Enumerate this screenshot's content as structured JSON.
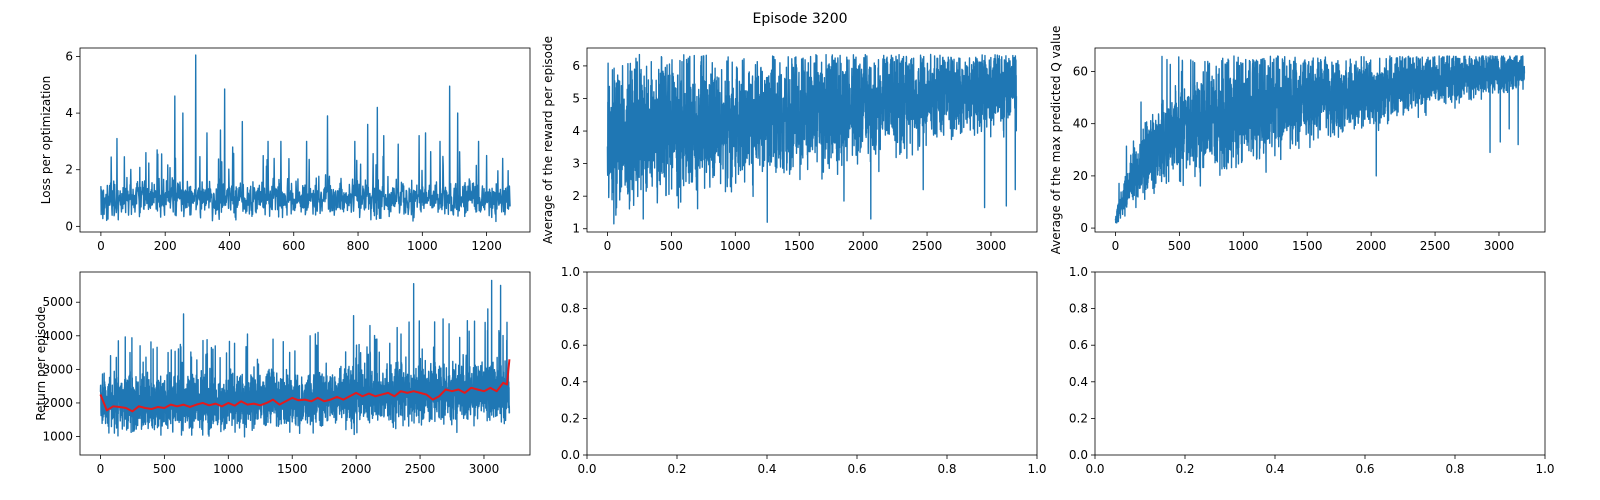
{
  "figure": {
    "suptitle": "Episode 3200"
  },
  "colors": {
    "series_blue": "#1f77b4",
    "moving_average_red": "#e41a1c",
    "axes_edge": "#000000",
    "background": "#ffffff"
  },
  "chart_data": [
    {
      "id": "loss",
      "type": "line",
      "title": "",
      "xlabel": "",
      "ylabel": "Loss per optimization",
      "xlim": [
        -65,
        1335
      ],
      "ylim": [
        -0.2,
        6.3
      ],
      "xticks": [
        0,
        200,
        400,
        600,
        800,
        1000,
        1200
      ],
      "yticks": [
        0,
        2,
        4,
        6
      ],
      "grid": false,
      "legend": "none",
      "series": [
        {
          "color": "#1f77b4",
          "style": "noisy-line",
          "n_points": 1274,
          "x_range": [
            0,
            1273
          ],
          "baseline": [
            [
              0,
              0.9
            ],
            [
              200,
              1.0
            ],
            [
              600,
              1.0
            ],
            [
              1000,
              1.0
            ],
            [
              1273,
              0.9
            ]
          ],
          "band": [
            [
              0,
              0.6
            ],
            [
              1273,
              0.6
            ]
          ],
          "floor": 0.15,
          "spikes": [
            [
              50,
              3.1
            ],
            [
              140,
              2.6
            ],
            [
              175,
              2.7
            ],
            [
              230,
              4.6
            ],
            [
              255,
              4.0
            ],
            [
              295,
              6.05
            ],
            [
              330,
              3.3
            ],
            [
              372,
              3.4
            ],
            [
              385,
              4.85
            ],
            [
              410,
              2.8
            ],
            [
              440,
              3.7
            ],
            [
              520,
              3.0
            ],
            [
              560,
              3.0
            ],
            [
              640,
              3.0
            ],
            [
              705,
              3.9
            ],
            [
              790,
              3.0
            ],
            [
              830,
              3.6
            ],
            [
              860,
              4.2
            ],
            [
              880,
              3.2
            ],
            [
              925,
              2.9
            ],
            [
              990,
              3.2
            ],
            [
              1010,
              3.3
            ],
            [
              1055,
              3.0
            ],
            [
              1085,
              4.95
            ],
            [
              1110,
              4.0
            ],
            [
              1175,
              3.0
            ],
            [
              1200,
              2.5
            ],
            [
              1250,
              2.4
            ]
          ]
        }
      ]
    },
    {
      "id": "avg-reward",
      "type": "line",
      "title": "",
      "xlabel": "",
      "ylabel": "Average of the reward per episode",
      "xlim": [
        -160,
        3360
      ],
      "ylim": [
        0.9,
        6.55
      ],
      "xticks": [
        0,
        500,
        1000,
        1500,
        2000,
        2500,
        3000
      ],
      "yticks": [
        1,
        2,
        3,
        4,
        5,
        6
      ],
      "grid": false,
      "legend": "none",
      "series": [
        {
          "color": "#1f77b4",
          "style": "noisy-line",
          "n_points": 3200,
          "x_range": [
            0,
            3199
          ],
          "baseline": [
            [
              0,
              3.8
            ],
            [
              500,
              4.0
            ],
            [
              1000,
              4.2
            ],
            [
              1500,
              4.5
            ],
            [
              2000,
              4.8
            ],
            [
              2500,
              5.1
            ],
            [
              3200,
              5.4
            ]
          ],
          "band": [
            [
              0,
              1.8
            ],
            [
              1500,
              1.6
            ],
            [
              3200,
              1.1
            ]
          ],
          "floor": 1.15,
          "ceiling": 6.35,
          "spikes": [
            [
              50,
              1.15
            ],
            [
              280,
              1.3
            ],
            [
              1250,
              1.2
            ],
            [
              1850,
              1.85
            ],
            [
              2060,
              1.3
            ],
            [
              2470,
              2.2
            ],
            [
              2950,
              1.65
            ],
            [
              3120,
              1.7
            ],
            [
              3190,
              2.2
            ]
          ]
        }
      ]
    },
    {
      "id": "avg-max-q",
      "type": "line",
      "title": "",
      "xlabel": "",
      "ylabel": "Average of the max predicted Q value",
      "xlim": [
        -160,
        3360
      ],
      "ylim": [
        -1.5,
        69
      ],
      "xticks": [
        0,
        500,
        1000,
        1500,
        2000,
        2500,
        3000
      ],
      "yticks": [
        0,
        20,
        40,
        60
      ],
      "grid": false,
      "legend": "none",
      "series": [
        {
          "color": "#1f77b4",
          "style": "noisy-line",
          "n_points": 3200,
          "x_range": [
            0,
            3199
          ],
          "baseline": [
            [
              0,
              3
            ],
            [
              100,
              16
            ],
            [
              300,
              30
            ],
            [
              500,
              38
            ],
            [
              1000,
              44
            ],
            [
              1500,
              49
            ],
            [
              2000,
              52
            ],
            [
              2500,
              57
            ],
            [
              3200,
              60
            ]
          ],
          "band": [
            [
              0,
              3
            ],
            [
              300,
              14
            ],
            [
              1000,
              18
            ],
            [
              2000,
              12
            ],
            [
              3200,
              6
            ]
          ],
          "floor": 2,
          "ceiling": 66,
          "spikes": [
            [
              10,
              2
            ],
            [
              2040,
              20
            ],
            [
              2930,
              29
            ],
            [
              3010,
              33
            ],
            [
              3080,
              38
            ],
            [
              3150,
              32
            ]
          ]
        }
      ]
    },
    {
      "id": "return",
      "type": "line",
      "title": "",
      "xlabel": "",
      "ylabel": "Return per episode",
      "xlim": [
        -160,
        3360
      ],
      "ylim": [
        450,
        5900
      ],
      "xticks": [
        0,
        500,
        1000,
        1500,
        2000,
        2500,
        3000
      ],
      "yticks": [
        1000,
        2000,
        3000,
        4000,
        5000
      ],
      "grid": false,
      "legend": "none",
      "series": [
        {
          "color": "#1f77b4",
          "style": "noisy-line",
          "n_points": 3200,
          "x_range": [
            0,
            3199
          ],
          "baseline": [
            [
              0,
              2000
            ],
            [
              1000,
              2000
            ],
            [
              2000,
              2200
            ],
            [
              3200,
              2400
            ]
          ],
          "band": [
            [
              0,
              700
            ],
            [
              3200,
              800
            ]
          ],
          "floor": 650,
          "spikes": [
            [
              140,
              3850
            ],
            [
              310,
              3700
            ],
            [
              650,
              4650
            ],
            [
              880,
              3600
            ],
            [
              1150,
              4050
            ],
            [
              1350,
              3900
            ],
            [
              1640,
              4000
            ],
            [
              1980,
              4600
            ],
            [
              2450,
              5550
            ],
            [
              2680,
              4500
            ],
            [
              2870,
              4450
            ],
            [
              3030,
              4800
            ],
            [
              3060,
              5650
            ],
            [
              3130,
              5500
            ],
            [
              3180,
              4400
            ]
          ]
        },
        {
          "color": "#e41a1c",
          "style": "line",
          "x": [
            0,
            50,
            100,
            150,
            200,
            250,
            300,
            350,
            400,
            450,
            500,
            550,
            600,
            650,
            700,
            750,
            800,
            850,
            900,
            950,
            1000,
            1050,
            1100,
            1150,
            1200,
            1250,
            1300,
            1350,
            1400,
            1450,
            1500,
            1550,
            1600,
            1650,
            1700,
            1750,
            1800,
            1850,
            1900,
            1950,
            2000,
            2050,
            2100,
            2150,
            2200,
            2250,
            2300,
            2350,
            2400,
            2450,
            2500,
            2550,
            2600,
            2650,
            2700,
            2750,
            2800,
            2850,
            2900,
            2950,
            3000,
            3050,
            3100,
            3150,
            3180,
            3199
          ],
          "y": [
            2250,
            1780,
            1900,
            1880,
            1850,
            1750,
            1900,
            1850,
            1820,
            1880,
            1850,
            1950,
            1900,
            1950,
            1880,
            1950,
            2000,
            1930,
            1980,
            1900,
            2000,
            1920,
            2050,
            1950,
            1980,
            1930,
            2000,
            2100,
            1950,
            2050,
            2150,
            2080,
            2100,
            2050,
            2150,
            2050,
            2100,
            2180,
            2100,
            2200,
            2300,
            2200,
            2280,
            2200,
            2250,
            2300,
            2200,
            2350,
            2300,
            2350,
            2300,
            2250,
            2100,
            2200,
            2400,
            2350,
            2400,
            2300,
            2450,
            2400,
            2350,
            2450,
            2350,
            2600,
            2550,
            3300
          ]
        }
      ]
    },
    {
      "id": "empty-a",
      "type": "line",
      "title": "",
      "xlabel": "",
      "ylabel": "",
      "xlim": [
        0,
        1
      ],
      "ylim": [
        0,
        1
      ],
      "xticks": [
        0.0,
        0.2,
        0.4,
        0.6,
        0.8,
        1.0
      ],
      "yticks": [
        0.0,
        0.2,
        0.4,
        0.6,
        0.8,
        1.0
      ],
      "xtick_labels": [
        "0.0",
        "0.2",
        "0.4",
        "0.6",
        "0.8",
        "1.0"
      ],
      "ytick_labels": [
        "0.0",
        "0.2",
        "0.4",
        "0.6",
        "0.8",
        "1.0"
      ],
      "grid": false,
      "legend": "none",
      "series": []
    },
    {
      "id": "empty-b",
      "type": "line",
      "title": "",
      "xlabel": "",
      "ylabel": "",
      "xlim": [
        0,
        1
      ],
      "ylim": [
        0,
        1
      ],
      "xticks": [
        0.0,
        0.2,
        0.4,
        0.6,
        0.8,
        1.0
      ],
      "yticks": [
        0.0,
        0.2,
        0.4,
        0.6,
        0.8,
        1.0
      ],
      "xtick_labels": [
        "0.0",
        "0.2",
        "0.4",
        "0.6",
        "0.8",
        "1.0"
      ],
      "ytick_labels": [
        "0.0",
        "0.2",
        "0.4",
        "0.6",
        "0.8",
        "1.0"
      ],
      "grid": false,
      "legend": "none",
      "series": []
    }
  ]
}
